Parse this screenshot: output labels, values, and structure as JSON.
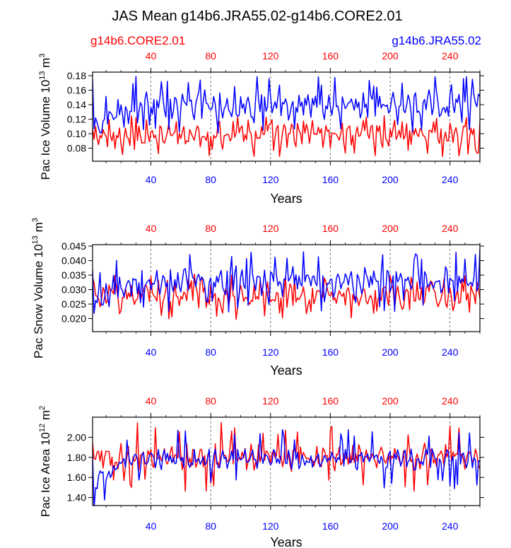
{
  "title": "JAS Mean g14b6.JRA55.02-g14b6.CORE2.01",
  "legend": {
    "left": {
      "label": "g14b6.CORE2.01",
      "color": "#ff0000"
    },
    "right": {
      "label": "g14b6.JRA55.02",
      "color": "#0000ff"
    }
  },
  "x_ticks": [
    "40",
    "80",
    "120",
    "160",
    "200",
    "240"
  ],
  "chart_data": [
    {
      "type": "line",
      "ylabel": "Pac Ice Volume 10",
      "ylabel_exp": "13",
      "ylabel_unit": "m",
      "ylabel_unit_exp": "3",
      "xlabel": "Years",
      "xlim": [
        1,
        260
      ],
      "ylim": [
        0.062,
        0.185
      ],
      "yticks": [
        "0.08",
        "0.10",
        "0.12",
        "0.14",
        "0.16",
        "0.18"
      ],
      "series": [
        {
          "name": "g14b6.CORE2.01",
          "color": "#ff0000",
          "mean": 0.098,
          "amp": 0.022,
          "spike": 0.03,
          "seed": 11,
          "start": 0.107
        },
        {
          "name": "g14b6.JRA55.02",
          "color": "#0000ff",
          "mean": 0.14,
          "amp": 0.024,
          "spike": 0.04,
          "seed": 23,
          "start": 0.175,
          "early_mean": 0.11,
          "early_end": 25
        }
      ]
    },
    {
      "type": "line",
      "ylabel": "Pac Snow Volume 10",
      "ylabel_exp": "13",
      "ylabel_unit": "m",
      "ylabel_unit_exp": "3",
      "xlabel": "Years",
      "xlim": [
        1,
        260
      ],
      "ylim": [
        0.0155,
        0.0455
      ],
      "yticks": [
        "0.020",
        "0.025",
        "0.030",
        "0.035",
        "0.040",
        "0.045"
      ],
      "series": [
        {
          "name": "g14b6.CORE2.01",
          "color": "#ff0000",
          "mean": 0.0275,
          "amp": 0.0055,
          "spike": 0.008,
          "seed": 37,
          "start": 0.034
        },
        {
          "name": "g14b6.JRA55.02",
          "color": "#0000ff",
          "mean": 0.033,
          "amp": 0.0065,
          "spike": 0.011,
          "seed": 53,
          "start": 0.037,
          "early_mean": 0.026,
          "early_end": 22
        }
      ]
    },
    {
      "type": "line",
      "ylabel": "Pac Ice Area 10",
      "ylabel_exp": "12",
      "ylabel_unit": "m",
      "ylabel_unit_exp": "2",
      "xlabel": "Years",
      "xlim": [
        1,
        260
      ],
      "ylim": [
        1.32,
        2.2
      ],
      "yticks": [
        "1.40",
        "1.60",
        "1.80",
        "2.00"
      ],
      "series": [
        {
          "name": "g14b6.CORE2.01",
          "color": "#ff0000",
          "mean": 1.8,
          "amp": 0.16,
          "spike": 0.36,
          "seed": 71,
          "start": 1.95
        },
        {
          "name": "g14b6.JRA55.02",
          "color": "#0000ff",
          "mean": 1.78,
          "amp": 0.13,
          "spike": 0.3,
          "seed": 89,
          "start": 1.83,
          "early_mean": 1.55,
          "early_end": 25
        }
      ]
    }
  ]
}
